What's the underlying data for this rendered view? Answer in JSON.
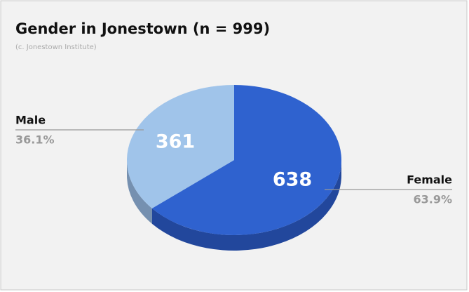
{
  "chart_data": {
    "type": "pie",
    "title": "Gender in Jonestown (n = 999)",
    "subtitle": "(c. Jonestown Institute)",
    "categories": [
      "Male",
      "Female"
    ],
    "values": [
      361,
      638
    ],
    "percent_labels": [
      "36.1%",
      "63.9%"
    ],
    "colors": [
      "#a0c4ea",
      "#2f62cf"
    ],
    "side_colors": [
      "#7590b0",
      "#22479c"
    ]
  }
}
